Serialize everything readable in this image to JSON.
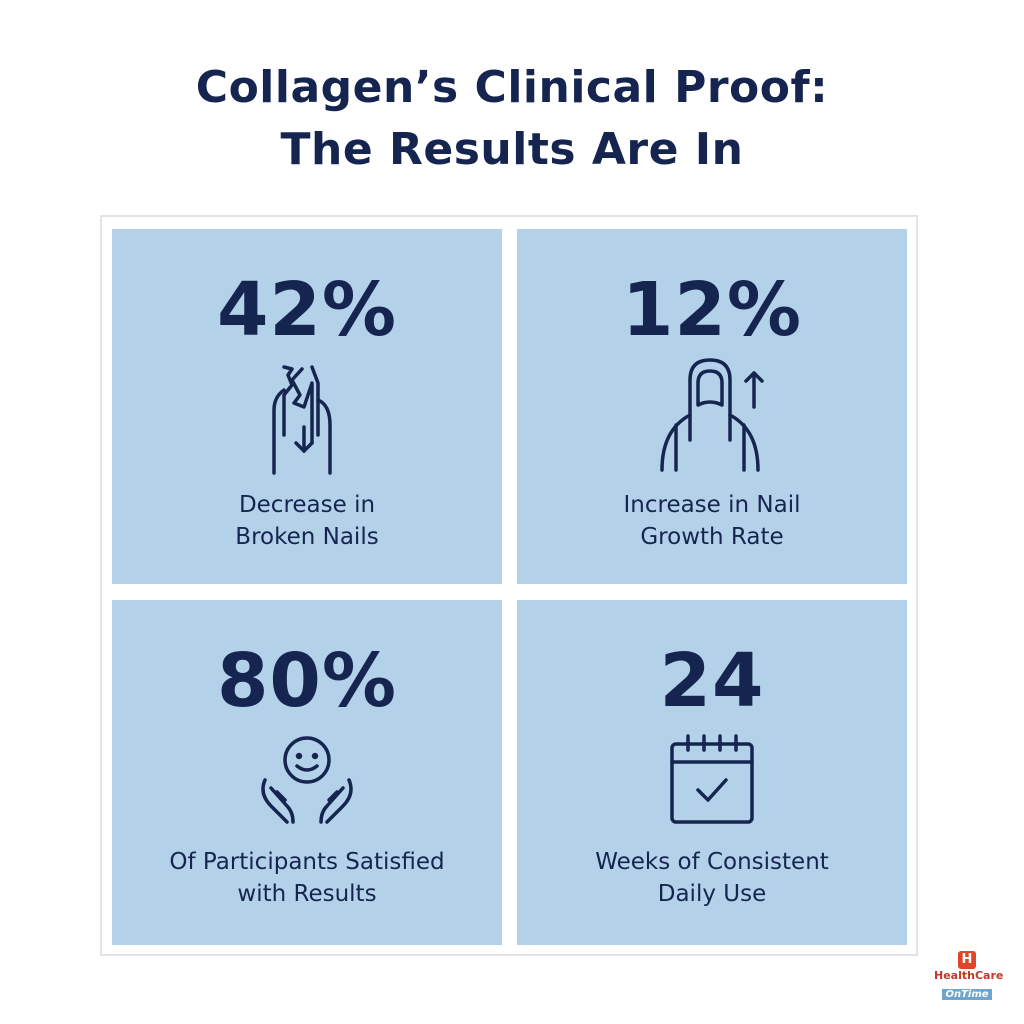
{
  "title": {
    "line1": "Collagen’s Clinical Proof:",
    "line2": "The Results Are In"
  },
  "colors": {
    "panel_bg": "#b3d2ea",
    "text": "#16254f",
    "logo_red": "#e0462a"
  },
  "stats": [
    {
      "value": "42%",
      "label_line1": "Decrease in",
      "label_line2": "Broken Nails",
      "icon": "broken-nail-down-arrow-icon"
    },
    {
      "value": "12%",
      "label_line1": "Increase in Nail",
      "label_line2": "Growth Rate",
      "icon": "nail-growth-up-arrow-icon"
    },
    {
      "value": "80%",
      "label_line1": "Of Participants Satisfied",
      "label_line2": "with Results",
      "icon": "smiley-hands-icon"
    },
    {
      "value": "24",
      "label_line1": "Weeks of Consistent",
      "label_line2": "Daily Use",
      "icon": "calendar-check-icon"
    }
  ],
  "logo": {
    "letter": "H",
    "name": "HealthCare",
    "tagline": "OnTime"
  }
}
